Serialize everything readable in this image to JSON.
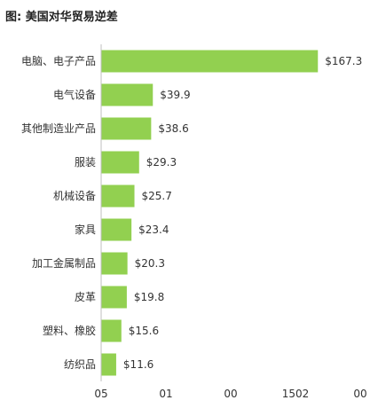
{
  "chart_data": {
    "type": "bar",
    "orientation": "horizontal",
    "title": "图: 美国对华贸易逆差",
    "categories": [
      "电脑、电子产品",
      "电气设备",
      "其他制造业产品",
      "服装",
      "机械设备",
      "家具",
      "加工金属制品",
      "皮革",
      "塑料、橡胶",
      "纺织品"
    ],
    "values": [
      167.3,
      39.9,
      38.6,
      29.3,
      25.7,
      23.4,
      20.3,
      19.8,
      15.6,
      11.6
    ],
    "value_labels": [
      "$167.3",
      "$39.9",
      "$38.6",
      "$29.3",
      "$25.7",
      "$23.4",
      "$20.3",
      "$19.8",
      "$15.6",
      "$11.6"
    ],
    "x_tick_labels": [
      "05",
      "01",
      "00",
      "1502",
      "00"
    ],
    "xlim": [
      0,
      200
    ],
    "bar_color": "#92d050",
    "grid": false,
    "legend": "none"
  }
}
